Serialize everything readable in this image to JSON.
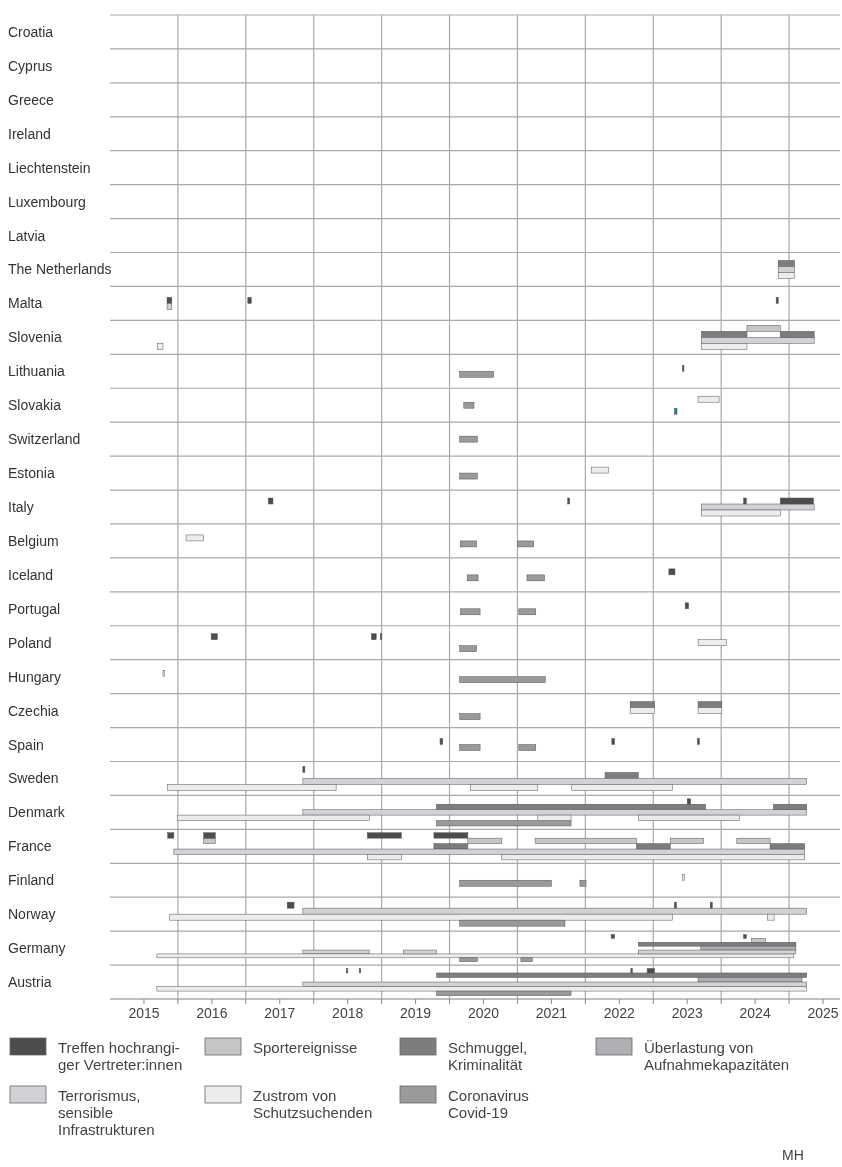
{
  "chart_data": {
    "type": "bar",
    "orientation": "horizontal",
    "grid": true,
    "legend": "bottom",
    "categories": [
      "Croatia",
      "Cyprus",
      "Greece",
      "Ireland",
      "Liechtenstein",
      "Luxembourg",
      "Latvia",
      "The Netherlands",
      "Malta",
      "Slovenia",
      "Lithuania",
      "Slovakia",
      "Switzerland",
      "Estonia",
      "Italy",
      "Belgium",
      "Iceland",
      "Portugal",
      "Poland",
      "Hungary",
      "Czechia",
      "Spain",
      "Sweden",
      "Denmark",
      "France",
      "Finland",
      "Norway",
      "Germany",
      "Austria"
    ],
    "xlim": [
      2014.5,
      2025.25
    ],
    "xticks": [
      2015,
      2016,
      2017,
      2018,
      2019,
      2020,
      2021,
      2022,
      2023,
      2024,
      2025,
      {
        "value": 2015.5,
        "label": null
      },
      {
        "value": 2016.5,
        "label": null
      },
      {
        "value": 2017.5,
        "label": null
      },
      {
        "value": 2018.5,
        "label": null
      },
      {
        "value": 2019.5,
        "label": null
      },
      {
        "value": 2020.5,
        "label": null
      },
      {
        "value": 2021.5,
        "label": null
      },
      {
        "value": 2022.5,
        "label": null
      },
      {
        "value": 2023.5,
        "label": null
      },
      {
        "value": 2024.5,
        "label": null
      }
    ],
    "annotations": [
      "MH"
    ],
    "series": [
      {
        "name": "Treffen hochrangi-\nger Vertreter:innen",
        "color": "#4d4d4d",
        "base": [
          null,
          null,
          null,
          null,
          null,
          null,
          null,
          null,
          2015.34,
          null,
          2022.93,
          null,
          null,
          null,
          2016.83,
          null,
          2022.73,
          2022.97,
          2015.99,
          null,
          null,
          2019.36,
          2017.34,
          2023.0,
          2015.35,
          null,
          2017.11,
          2021.88,
          2017.98
        ],
        "values": [
          null,
          null,
          null,
          null,
          null,
          null,
          null,
          null,
          0.07,
          null,
          0.02,
          null,
          null,
          null,
          0.07,
          null,
          0.09,
          0.05,
          0.09,
          null,
          null,
          0.04,
          0.03,
          0.05,
          0.09,
          null,
          0.1,
          0.05,
          0.02
        ]
      },
      {
        "name": "Sportereignisse",
        "color": "#c6c6c6",
        "base": [
          null,
          null,
          null,
          null,
          null,
          null,
          null,
          null,
          null,
          2023.88,
          null,
          null,
          null,
          null,
          null,
          null,
          null,
          null,
          null,
          null,
          null,
          null,
          null,
          null,
          2015.88,
          null,
          null,
          2023.95,
          null
        ],
        "values": [
          null,
          null,
          null,
          null,
          null,
          null,
          null,
          null,
          null,
          0.49,
          null,
          null,
          null,
          null,
          null,
          null,
          null,
          null,
          null,
          null,
          null,
          null,
          null,
          null,
          0.17,
          null,
          null,
          0.2,
          null
        ]
      },
      {
        "name": "Schmuggel,\nKriminalität",
        "color": "#7d7d80",
        "base": [
          null,
          null,
          null,
          null,
          null,
          null,
          null,
          2024.34,
          null,
          2023.21,
          null,
          null,
          null,
          null,
          null,
          null,
          null,
          null,
          null,
          null,
          2022.16,
          null,
          2021.79,
          2019.31,
          2019.27,
          null,
          null,
          2022.28,
          2019.31
        ],
        "values": [
          null,
          null,
          null,
          null,
          null,
          null,
          null,
          0.24,
          null,
          0.67,
          null,
          null,
          null,
          null,
          null,
          null,
          null,
          null,
          null,
          null,
          0.36,
          null,
          0.49,
          3.96,
          0.5,
          null,
          null,
          2.32,
          5.45
        ]
      },
      {
        "name": "Überlastung von\nAufnahmekapazitäten",
        "color": "#b0b0b4",
        "base": [
          null,
          null,
          null,
          null,
          null,
          null,
          null,
          null,
          null,
          null,
          null,
          null,
          null,
          null,
          null,
          null,
          null,
          null,
          null,
          null,
          null,
          null,
          null,
          null,
          null,
          null,
          null,
          2023.2,
          2023.16
        ],
        "values": [
          null,
          null,
          null,
          null,
          null,
          null,
          null,
          null,
          null,
          null,
          null,
          null,
          null,
          null,
          null,
          null,
          null,
          null,
          null,
          null,
          null,
          null,
          null,
          null,
          null,
          null,
          null,
          1.4,
          1.53
        ]
      },
      {
        "name": "Terrorismus,\nsensible\nInfrastrukturen",
        "color": "#d2d2d6",
        "base": [
          null,
          null,
          null,
          null,
          null,
          null,
          null,
          2024.34,
          2015.34,
          2023.21,
          null,
          null,
          null,
          null,
          2023.21,
          null,
          null,
          null,
          null,
          null,
          null,
          null,
          2017.34,
          2017.34,
          2015.44,
          null,
          2017.34,
          2017.34,
          2017.34
        ],
        "values": [
          null,
          null,
          null,
          null,
          null,
          null,
          null,
          0.24,
          0.07,
          1.66,
          null,
          null,
          null,
          null,
          1.66,
          null,
          null,
          null,
          null,
          null,
          null,
          null,
          7.42,
          7.42,
          9.29,
          null,
          7.42,
          0.98,
          7.42
        ]
      },
      {
        "name": "Zustrom von\nSchutzsuchenden",
        "color": "#ececec",
        "base": [
          null,
          null,
          null,
          null,
          null,
          null,
          null,
          2024.34,
          null,
          2015.2,
          null,
          2023.16,
          null,
          2021.59,
          null,
          2015.62,
          null,
          null,
          2023.16,
          2015.28,
          2022.16,
          null,
          2015.35,
          2015.49,
          2018.29,
          2022.93,
          2015.38,
          2015.19,
          2015.19
        ],
        "values": [
          null,
          null,
          null,
          null,
          null,
          null,
          null,
          0.24,
          null,
          0.08,
          null,
          0.31,
          null,
          0.25,
          null,
          0.26,
          null,
          null,
          0.42,
          0.02,
          0.36,
          null,
          2.48,
          2.83,
          0.5,
          0.03,
          7.4,
          9.38,
          9.57
        ]
      },
      {
        "name": "Coronavirus\nCovid-19",
        "color": "#9a9a9a",
        "base": [
          null,
          null,
          null,
          null,
          null,
          null,
          null,
          null,
          null,
          null,
          2019.65,
          2019.71,
          2019.65,
          2019.65,
          null,
          2019.66,
          2019.76,
          2019.66,
          2019.65,
          2019.65,
          2019.65,
          2019.65,
          null,
          2019.31,
          null,
          2019.65,
          2019.65,
          2019.65,
          2019.31
        ],
        "values": [
          null,
          null,
          null,
          null,
          null,
          null,
          null,
          null,
          null,
          null,
          0.5,
          0.15,
          0.26,
          0.26,
          null,
          0.24,
          0.16,
          0.29,
          0.25,
          1.26,
          0.3,
          0.3,
          null,
          1.98,
          null,
          1.35,
          1.55,
          0.26,
          1.98
        ]
      },
      {
        "color": "#4d4d4d",
        "base": [
          null,
          null,
          null,
          null,
          null,
          null,
          null,
          null,
          2016.53,
          null,
          null,
          null,
          null,
          null,
          2021.24,
          null,
          null,
          null,
          2018.35,
          null,
          null,
          2021.89,
          null,
          null,
          2015.88,
          null,
          2022.81,
          2023.83,
          2018.17
        ],
        "values": [
          null,
          null,
          null,
          null,
          null,
          null,
          null,
          null,
          0.05,
          null,
          null,
          null,
          null,
          null,
          0.03,
          null,
          null,
          null,
          0.07,
          null,
          null,
          0.04,
          null,
          null,
          0.17,
          null,
          0.03,
          0.04,
          0.02
        ]
      },
      {
        "color": "#4d4d4d",
        "base": [
          null,
          null,
          null,
          null,
          null,
          null,
          null,
          null,
          2024.31,
          null,
          null,
          null,
          null,
          null,
          2023.83,
          null,
          null,
          null,
          2018.48,
          null,
          null,
          2023.15,
          null,
          null,
          2018.29,
          null,
          2023.34,
          null,
          2022.17
        ],
        "values": [
          null,
          null,
          null,
          null,
          null,
          null,
          null,
          null,
          0.03,
          null,
          null,
          null,
          null,
          null,
          0.04,
          null,
          null,
          null,
          0.02,
          null,
          null,
          0.03,
          null,
          null,
          0.5,
          null,
          0.03,
          null,
          0.02
        ]
      },
      {
        "color": "#4d4d4d",
        "base": [
          null,
          null,
          null,
          null,
          null,
          null,
          null,
          null,
          null,
          null,
          null,
          null,
          null,
          null,
          2024.37,
          null,
          null,
          null,
          null,
          null,
          null,
          null,
          null,
          null,
          2019.27,
          null,
          null,
          null,
          2022.41
        ],
        "values": [
          null,
          null,
          null,
          null,
          null,
          null,
          null,
          null,
          null,
          null,
          null,
          null,
          null,
          null,
          0.49,
          null,
          null,
          null,
          null,
          null,
          null,
          null,
          null,
          null,
          0.5,
          null,
          null,
          null,
          0.11
        ]
      },
      {
        "color": "#c6c6c6",
        "base": [
          null,
          null,
          null,
          null,
          null,
          null,
          null,
          null,
          null,
          null,
          null,
          null,
          null,
          null,
          null,
          null,
          null,
          null,
          null,
          null,
          null,
          null,
          null,
          null,
          2019.77,
          null,
          null,
          null,
          null
        ],
        "values": [
          null,
          null,
          null,
          null,
          null,
          null,
          null,
          null,
          null,
          null,
          null,
          null,
          null,
          null,
          null,
          null,
          null,
          null,
          null,
          null,
          null,
          null,
          null,
          null,
          0.5,
          null,
          null,
          null,
          null
        ]
      },
      {
        "color": "#c6c6c6",
        "base": [
          null,
          null,
          null,
          null,
          null,
          null,
          null,
          null,
          null,
          null,
          null,
          null,
          null,
          null,
          null,
          null,
          null,
          null,
          null,
          null,
          null,
          null,
          null,
          null,
          2020.76,
          null,
          null,
          null,
          null
        ],
        "values": [
          null,
          null,
          null,
          null,
          null,
          null,
          null,
          null,
          null,
          null,
          null,
          null,
          null,
          null,
          null,
          null,
          null,
          null,
          null,
          null,
          null,
          null,
          null,
          null,
          1.49,
          null,
          null,
          null,
          null
        ]
      },
      {
        "color": "#c6c6c6",
        "base": [
          null,
          null,
          null,
          null,
          null,
          null,
          null,
          null,
          null,
          null,
          null,
          null,
          null,
          null,
          null,
          null,
          null,
          null,
          null,
          null,
          null,
          null,
          null,
          null,
          2022.75,
          null,
          null,
          null,
          null
        ],
        "values": [
          null,
          null,
          null,
          null,
          null,
          null,
          null,
          null,
          null,
          null,
          null,
          null,
          null,
          null,
          null,
          null,
          null,
          null,
          null,
          null,
          null,
          null,
          null,
          null,
          0.49,
          null,
          null,
          null,
          null
        ]
      },
      {
        "color": "#c6c6c6",
        "base": [
          null,
          null,
          null,
          null,
          null,
          null,
          null,
          null,
          null,
          null,
          null,
          null,
          null,
          null,
          null,
          null,
          null,
          null,
          null,
          null,
          null,
          null,
          null,
          null,
          2023.73,
          null,
          null,
          null,
          null
        ],
        "values": [
          null,
          null,
          null,
          null,
          null,
          null,
          null,
          null,
          null,
          null,
          null,
          null,
          null,
          null,
          null,
          null,
          null,
          null,
          null,
          null,
          null,
          null,
          null,
          null,
          0.49,
          null,
          null,
          null,
          null
        ]
      },
      {
        "color": "#7d7d80",
        "base": [
          null,
          null,
          null,
          null,
          null,
          null,
          null,
          null,
          null,
          2024.37,
          null,
          null,
          null,
          null,
          null,
          null,
          null,
          null,
          null,
          null,
          2023.16,
          null,
          null,
          2024.27,
          2022.25,
          null,
          null,
          null,
          null
        ],
        "values": [
          null,
          null,
          null,
          null,
          null,
          null,
          null,
          null,
          null,
          0.5,
          null,
          null,
          null,
          null,
          null,
          null,
          null,
          null,
          null,
          null,
          0.35,
          null,
          null,
          0.49,
          0.5,
          null,
          null,
          null,
          null
        ]
      },
      {
        "color": "#7d7d80",
        "base": [
          null,
          null,
          null,
          null,
          null,
          null,
          null,
          null,
          null,
          null,
          null,
          null,
          null,
          null,
          null,
          null,
          null,
          null,
          null,
          null,
          null,
          null,
          null,
          null,
          2024.22,
          null,
          null,
          null,
          null
        ],
        "values": [
          null,
          null,
          null,
          null,
          null,
          null,
          null,
          null,
          null,
          null,
          null,
          null,
          null,
          null,
          null,
          null,
          null,
          null,
          null,
          null,
          null,
          null,
          null,
          null,
          0.51,
          null,
          null,
          null,
          null
        ]
      },
      {
        "color": "#d2d2d6",
        "base": [
          null,
          null,
          null,
          null,
          null,
          null,
          null,
          null,
          null,
          null,
          null,
          null,
          null,
          null,
          null,
          null,
          null,
          null,
          null,
          null,
          null,
          null,
          null,
          null,
          null,
          null,
          null,
          2018.82,
          null
        ],
        "values": [
          null,
          null,
          null,
          null,
          null,
          null,
          null,
          null,
          null,
          null,
          null,
          null,
          null,
          null,
          null,
          null,
          null,
          null,
          null,
          null,
          null,
          null,
          null,
          null,
          null,
          null,
          null,
          0.49,
          null
        ]
      },
      {
        "color": "#d2d2d6",
        "base": [
          null,
          null,
          null,
          null,
          null,
          null,
          null,
          null,
          null,
          null,
          null,
          null,
          null,
          null,
          null,
          null,
          null,
          null,
          null,
          null,
          null,
          null,
          null,
          null,
          null,
          null,
          null,
          2022.28,
          null
        ],
        "values": [
          null,
          null,
          null,
          null,
          null,
          null,
          null,
          null,
          null,
          null,
          null,
          null,
          null,
          null,
          null,
          null,
          null,
          null,
          null,
          null,
          null,
          null,
          null,
          null,
          null,
          null,
          null,
          2.32,
          null
        ]
      },
      {
        "color": "#ececec",
        "base": [
          null,
          null,
          null,
          null,
          null,
          null,
          null,
          null,
          null,
          2023.21,
          null,
          null,
          null,
          null,
          2023.21,
          null,
          null,
          null,
          null,
          null,
          2023.16,
          null,
          2019.81,
          2020.8,
          2020.27,
          null,
          2024.18,
          null,
          null
        ],
        "values": [
          null,
          null,
          null,
          null,
          null,
          null,
          null,
          null,
          null,
          0.67,
          null,
          null,
          null,
          null,
          1.16,
          null,
          null,
          null,
          null,
          null,
          0.35,
          null,
          0.99,
          0.49,
          4.46,
          null,
          0.1,
          null,
          null
        ]
      },
      {
        "color": "#ececec",
        "base": [
          null,
          null,
          null,
          null,
          null,
          null,
          null,
          null,
          null,
          null,
          null,
          null,
          null,
          null,
          null,
          null,
          null,
          null,
          null,
          null,
          null,
          null,
          2021.3,
          2022.28,
          null,
          null,
          null,
          null,
          null
        ],
        "values": [
          null,
          null,
          null,
          null,
          null,
          null,
          null,
          null,
          null,
          null,
          null,
          null,
          null,
          null,
          null,
          null,
          null,
          null,
          null,
          null,
          null,
          null,
          1.48,
          1.49,
          null,
          null,
          null,
          null,
          null
        ]
      },
      {
        "color": "#9a9a9a",
        "base": [
          null,
          null,
          null,
          null,
          null,
          null,
          null,
          null,
          null,
          null,
          null,
          null,
          null,
          null,
          null,
          2020.5,
          2020.64,
          2020.52,
          null,
          null,
          null,
          2020.52,
          null,
          null,
          null,
          2021.42,
          null,
          2020.55,
          null
        ],
        "values": [
          null,
          null,
          null,
          null,
          null,
          null,
          null,
          null,
          null,
          null,
          null,
          null,
          null,
          null,
          null,
          0.24,
          0.26,
          0.25,
          null,
          null,
          null,
          0.25,
          null,
          null,
          null,
          0.09,
          null,
          0.17,
          null
        ]
      },
      {
        "color": "#2a80a8",
        "base": [
          null,
          null,
          null,
          null,
          null,
          null,
          null,
          null,
          null,
          null,
          null,
          2022.81,
          null,
          null,
          null,
          null,
          null,
          null,
          null,
          null,
          null,
          null,
          null,
          null,
          null,
          null,
          null,
          null,
          null
        ],
        "values": [
          null,
          null,
          null,
          null,
          null,
          null,
          null,
          null,
          null,
          null,
          null,
          0.04,
          null,
          null,
          null,
          null,
          null,
          null,
          null,
          null,
          null,
          null,
          null,
          null,
          null,
          null,
          null,
          null,
          null
        ]
      }
    ]
  }
}
